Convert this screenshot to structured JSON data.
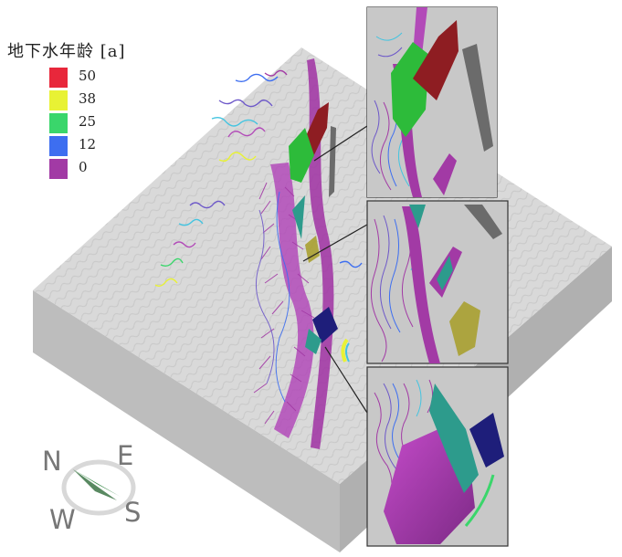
{
  "legend": {
    "title": "地下水年龄 [a]",
    "items": [
      {
        "label": "50",
        "color": "#e8273b"
      },
      {
        "label": "38",
        "color": "#e8f234"
      },
      {
        "label": "25",
        "color": "#3ad66b"
      },
      {
        "label": "12",
        "color": "#3d6ef0"
      },
      {
        "label": "0",
        "color": "#a23aa5"
      }
    ]
  },
  "compass": {
    "north": "N",
    "east": "E",
    "west": "W",
    "south": "S"
  },
  "colors": {
    "slab_top": "#d8d8d8",
    "slab_left": "#bdbdbd",
    "slab_right": "#b3b3b3",
    "red_body": "#8e1d22",
    "green_body": "#2dbb3a",
    "dark_shadow": "#6b6b6b",
    "navy_body": "#1e1e7a",
    "teal_body": "#2d9b8c",
    "compass_arrow": "#3a8a4a"
  }
}
